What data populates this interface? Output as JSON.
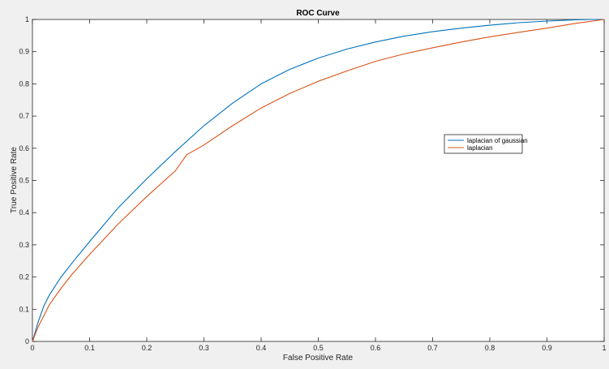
{
  "chart_data": {
    "type": "line",
    "title": "ROC Curve",
    "xlabel": "False Positive Rate",
    "ylabel": "True Positive Rate",
    "xlim": [
      0,
      1
    ],
    "ylim": [
      0,
      1
    ],
    "xticks": [
      0,
      0.1,
      0.2,
      0.3,
      0.4,
      0.5,
      0.6,
      0.7,
      0.8,
      0.9,
      1
    ],
    "yticks": [
      0,
      0.1,
      0.2,
      0.3,
      0.4,
      0.5,
      0.6,
      0.7,
      0.8,
      0.9,
      1
    ],
    "xtick_labels": [
      "0",
      "0.1",
      "0.2",
      "0.3",
      "0.4",
      "0.5",
      "0.6",
      "0.7",
      "0.8",
      "0.9",
      "1"
    ],
    "ytick_labels": [
      "0",
      "0.1",
      "0.2",
      "0.3",
      "0.4",
      "0.5",
      "0.6",
      "0.7",
      "0.8",
      "0.9",
      "1"
    ],
    "grid": false,
    "legend_position": "right-middle",
    "series": [
      {
        "name": "laplacian of gaussian",
        "color": "#0072BD",
        "x": [
          0,
          0.01,
          0.02,
          0.03,
          0.05,
          0.07,
          0.1,
          0.15,
          0.2,
          0.25,
          0.3,
          0.35,
          0.4,
          0.45,
          0.5,
          0.55,
          0.6,
          0.65,
          0.7,
          0.75,
          0.8,
          0.85,
          0.9,
          0.95,
          0.98,
          1
        ],
        "y": [
          0,
          0.06,
          0.11,
          0.145,
          0.2,
          0.245,
          0.31,
          0.415,
          0.505,
          0.59,
          0.67,
          0.74,
          0.8,
          0.845,
          0.88,
          0.908,
          0.93,
          0.948,
          0.962,
          0.973,
          0.982,
          0.99,
          0.995,
          0.999,
          1,
          1
        ]
      },
      {
        "name": "laplacian",
        "color": "#D95319",
        "x": [
          0,
          0.01,
          0.02,
          0.03,
          0.05,
          0.07,
          0.1,
          0.15,
          0.2,
          0.25,
          0.27,
          0.3,
          0.35,
          0.4,
          0.45,
          0.5,
          0.55,
          0.6,
          0.65,
          0.7,
          0.75,
          0.8,
          0.85,
          0.9,
          0.95,
          1
        ],
        "y": [
          0,
          0.045,
          0.08,
          0.115,
          0.165,
          0.21,
          0.27,
          0.365,
          0.45,
          0.53,
          0.58,
          0.61,
          0.67,
          0.725,
          0.77,
          0.808,
          0.84,
          0.87,
          0.893,
          0.912,
          0.93,
          0.946,
          0.96,
          0.973,
          0.988,
          1
        ]
      }
    ]
  }
}
